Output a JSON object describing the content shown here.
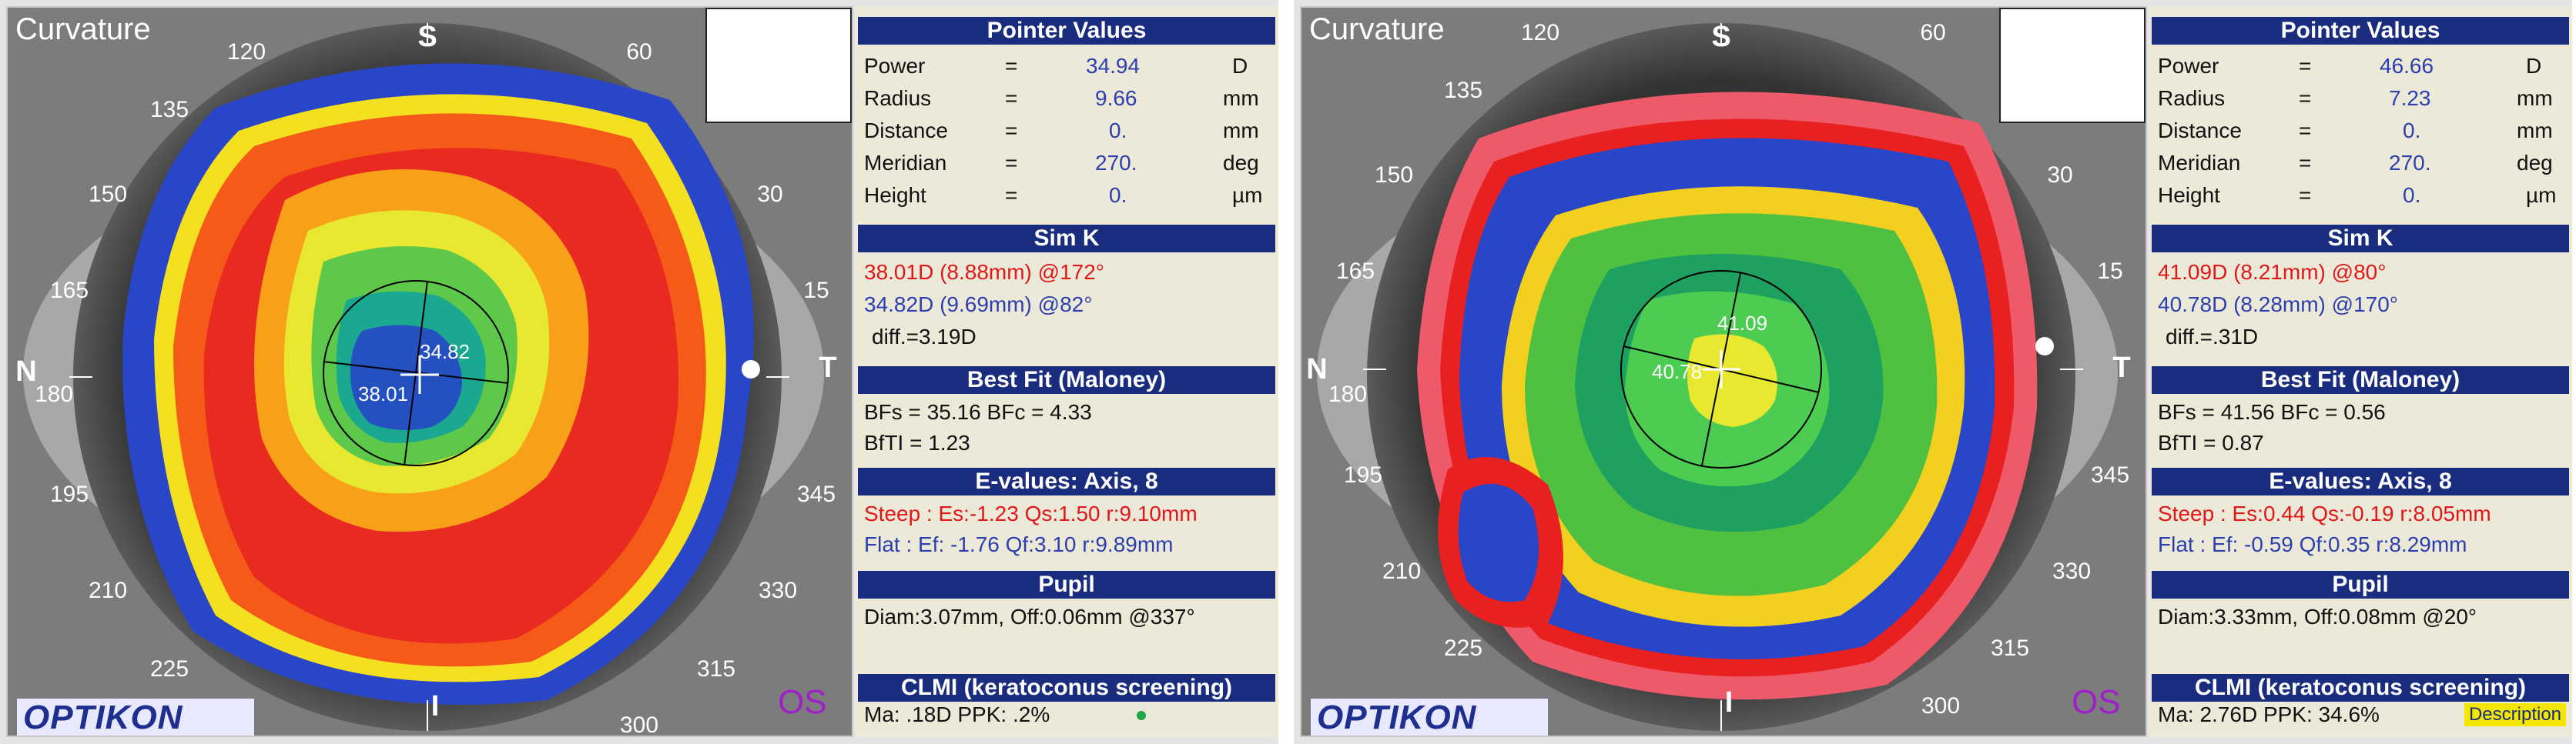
{
  "panels": [
    {
      "map_title": "Curvature",
      "eye": "OS",
      "logo": "OPTIKON",
      "ticks": {
        "t120": "120",
        "t60": "60",
        "t135": "135",
        "t150": "150",
        "t30": "30",
        "t165": "165",
        "t15": "15",
        "tN": "N",
        "tT": "T",
        "t180": "180",
        "t195": "195",
        "t345": "345",
        "t210": "210",
        "t330": "330",
        "t225": "225",
        "t315": "315",
        "t300": "300",
        "tS": "S",
        "tI": "I"
      },
      "center": {
        "upper": "34.82",
        "lower": "38.01"
      },
      "pointer_values": {
        "header": "Pointer Values",
        "rows": [
          {
            "label": "Power",
            "eq": "=",
            "value": "34.94",
            "unit": "D"
          },
          {
            "label": "Radius",
            "eq": "=",
            "value": "9.66",
            "unit": "mm"
          },
          {
            "label": "Distance",
            "eq": "=",
            "value": "0.",
            "unit": "mm"
          },
          {
            "label": "Meridian",
            "eq": "=",
            "value": "270.",
            "unit": "deg"
          },
          {
            "label": "Height",
            "eq": "=",
            "value": "0.",
            "unit": "µm"
          }
        ]
      },
      "simk": {
        "header": "Sim K",
        "steep": "38.01D (8.88mm) @172°",
        "flat": "34.82D (9.69mm) @82°",
        "diff": "diff.=3.19D"
      },
      "bestfit": {
        "header": "Best Fit (Maloney)",
        "line1": "BFs = 35.16 BFc = 4.33",
        "line2": "BfTI = 1.23"
      },
      "evalues": {
        "header": "E-values: Axis, 8",
        "steep": "Steep :  Es:-1.23 Qs:1.50 r:9.10mm",
        "flat": "Flat    :  Ef: -1.76 Qf:3.10 r:9.89mm"
      },
      "pupil": {
        "header": "Pupil",
        "line": "Diam:3.07mm, Off:0.06mm @337°"
      },
      "clmi": {
        "header": "CLMI (keratoconus screening)",
        "line": "Ma: .18D   PPK: .2%"
      }
    },
    {
      "map_title": "Curvature",
      "eye": "OS",
      "logo": "OPTIKON",
      "ticks": {
        "t120": "120",
        "t60": "60",
        "t135": "135",
        "t150": "150",
        "t30": "30",
        "t165": "165",
        "t15": "15",
        "tN": "N",
        "tT": "T",
        "t180": "180",
        "t195": "195",
        "t345": "345",
        "t210": "210",
        "t330": "330",
        "t225": "225",
        "t315": "315",
        "t300": "300",
        "tS": "S",
        "tI": "I"
      },
      "center": {
        "upper": "41.09",
        "lower": "40.78"
      },
      "pointer_values": {
        "header": "Pointer Values",
        "rows": [
          {
            "label": "Power",
            "eq": "=",
            "value": "46.66",
            "unit": "D"
          },
          {
            "label": "Radius",
            "eq": "=",
            "value": "7.23",
            "unit": "mm"
          },
          {
            "label": "Distance",
            "eq": "=",
            "value": "0.",
            "unit": "mm"
          },
          {
            "label": "Meridian",
            "eq": "=",
            "value": "270.",
            "unit": "deg"
          },
          {
            "label": "Height",
            "eq": "=",
            "value": "0.",
            "unit": "µm"
          }
        ]
      },
      "simk": {
        "header": "Sim K",
        "steep": "41.09D (8.21mm) @80°",
        "flat": "40.78D (8.28mm) @170°",
        "diff": "diff.=.31D"
      },
      "bestfit": {
        "header": "Best Fit (Maloney)",
        "line1": "BFs = 41.56 BFc = 0.56",
        "line2": "BfTI = 0.87"
      },
      "evalues": {
        "header": "E-values: Axis, 8",
        "steep": "Steep :  Es:0.44 Qs:-0.19 r:8.05mm",
        "flat": "Flat    :  Ef: -0.59 Qf:0.35 r:8.29mm"
      },
      "pupil": {
        "header": "Pupil",
        "line": "Diam:3.33mm, Off:0.08mm @20°"
      },
      "clmi": {
        "header": "CLMI (keratoconus screening)",
        "line": "Ma: 2.76D   PPK: 34.6%",
        "description_button": "Description"
      }
    }
  ],
  "colors": {
    "header_bg": "#1a2c7e",
    "steep_text": "#e01818",
    "flat_text": "#2b3fb0",
    "ppk_ok_dot": "#22a64a",
    "eye_label": "#a020c8"
  }
}
